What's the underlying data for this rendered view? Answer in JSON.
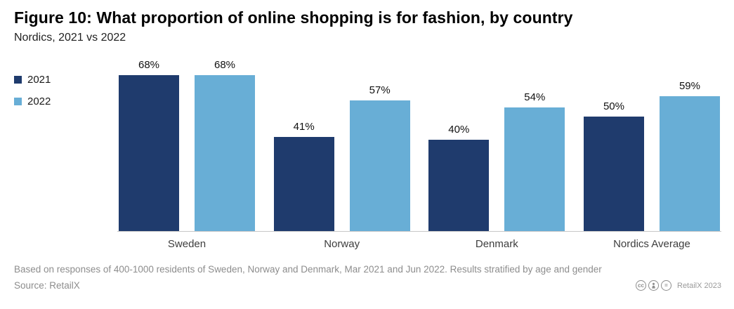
{
  "header": {
    "title": "Figure 10: What proportion of online shopping is for fashion, by country",
    "subtitle": "Nordics, 2021 vs 2022"
  },
  "chart_data": {
    "type": "bar",
    "title": "Figure 10: What proportion of online shopping is for fashion, by country",
    "subtitle": "Nordics, 2021 vs 2022",
    "categories": [
      "Sweden",
      "Norway",
      "Denmark",
      "Nordics Average"
    ],
    "series": [
      {
        "name": "2021",
        "color": "#1f3b6d",
        "values": [
          68,
          41,
          40,
          50
        ]
      },
      {
        "name": "2022",
        "color": "#68aed6",
        "values": [
          68,
          57,
          54,
          59
        ]
      }
    ],
    "value_suffix": "%",
    "xlabel": "",
    "ylabel": "",
    "ylim": [
      0,
      70
    ],
    "grid": false,
    "legend_position": "left",
    "data_labels": true
  },
  "footer": {
    "note": "Based on responses of 400-1000 residents of Sweden, Norway and Denmark, Mar 2021 and Jun 2022. Results stratified by age and gender",
    "source": "Source: RetailX",
    "credit": "RetailX 2023",
    "license_icons": [
      "cc",
      "attribution",
      "no-derivatives"
    ]
  }
}
